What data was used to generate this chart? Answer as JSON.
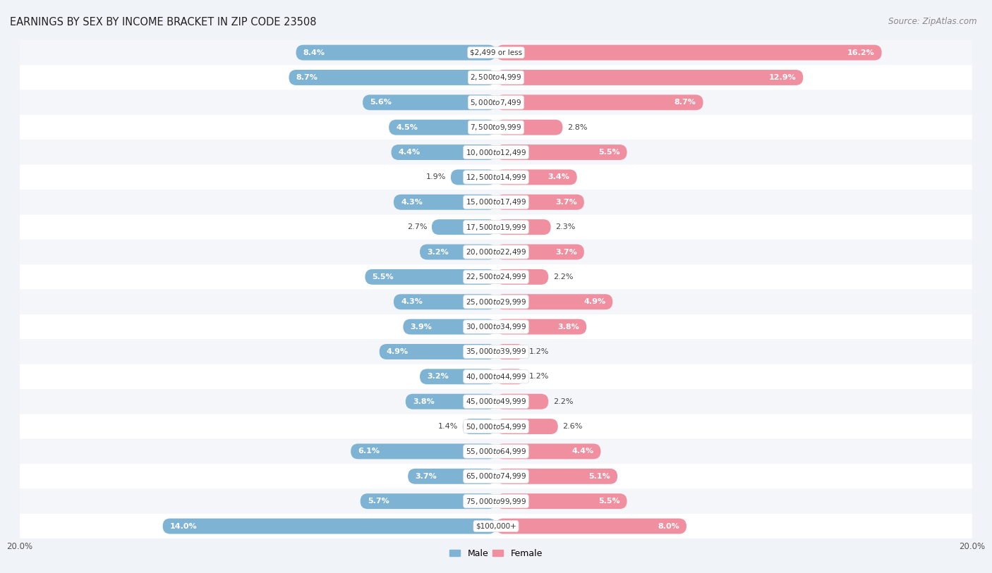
{
  "title": "EARNINGS BY SEX BY INCOME BRACKET IN ZIP CODE 23508",
  "source": "Source: ZipAtlas.com",
  "categories": [
    "$2,499 or less",
    "$2,500 to $4,999",
    "$5,000 to $7,499",
    "$7,500 to $9,999",
    "$10,000 to $12,499",
    "$12,500 to $14,999",
    "$15,000 to $17,499",
    "$17,500 to $19,999",
    "$20,000 to $22,499",
    "$22,500 to $24,999",
    "$25,000 to $29,999",
    "$30,000 to $34,999",
    "$35,000 to $39,999",
    "$40,000 to $44,999",
    "$45,000 to $49,999",
    "$50,000 to $54,999",
    "$55,000 to $64,999",
    "$65,000 to $74,999",
    "$75,000 to $99,999",
    "$100,000+"
  ],
  "male_values": [
    8.4,
    8.7,
    5.6,
    4.5,
    4.4,
    1.9,
    4.3,
    2.7,
    3.2,
    5.5,
    4.3,
    3.9,
    4.9,
    3.2,
    3.8,
    1.4,
    6.1,
    3.7,
    5.7,
    14.0
  ],
  "female_values": [
    16.2,
    12.9,
    8.7,
    2.8,
    5.5,
    3.4,
    3.7,
    2.3,
    3.7,
    2.2,
    4.9,
    3.8,
    1.2,
    1.2,
    2.2,
    2.6,
    4.4,
    5.1,
    5.5,
    8.0
  ],
  "male_color": "#7fb3d3",
  "female_color": "#f08fa0",
  "male_label": "Male",
  "female_label": "Female",
  "xlim": 20.0,
  "row_colors": [
    "#f5f6fa",
    "#ffffff"
  ],
  "title_fontsize": 10.5,
  "source_fontsize": 8.5,
  "value_fontsize": 8.0,
  "category_fontsize": 7.5,
  "legend_fontsize": 9,
  "tick_fontsize": 8.5,
  "bar_height": 0.62,
  "label_threshold": 3.0
}
